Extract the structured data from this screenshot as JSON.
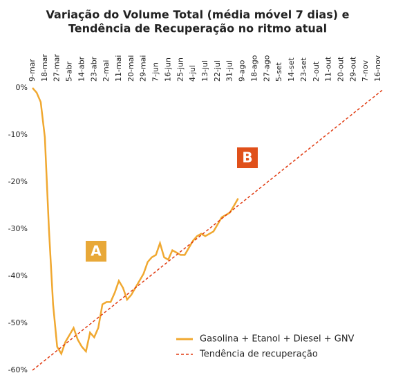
{
  "chart_data": {
    "type": "line",
    "title": [
      "Variação do Volume Total (média móvel 7 dias) e",
      "Tendência de Recuperação no ritmo atual"
    ],
    "categories": [
      "9-mar",
      null,
      null,
      "18-mar",
      null,
      null,
      "27-mar",
      null,
      null,
      "5-abr",
      null,
      null,
      "14-abr",
      null,
      null,
      "23-abr",
      null,
      null,
      "2-mai",
      null,
      null,
      "11-mai",
      null,
      null,
      "20-mai",
      null,
      null,
      "29-mai",
      null,
      null,
      "7-jun",
      null,
      null,
      "16-jun",
      null,
      null,
      "25-jun",
      null,
      null,
      "4-jul",
      null,
      null,
      "13-jul",
      null,
      null,
      "22-jul",
      null,
      null,
      "31-jul",
      null,
      null,
      "9-ago",
      null,
      null,
      "18-ago",
      null,
      null,
      "27-ago",
      null,
      null,
      "5-set",
      null,
      null,
      "14-set",
      null,
      null,
      "23-set",
      null,
      null,
      "2-out",
      null,
      null,
      "11-out",
      null,
      null,
      "20-out",
      null,
      null,
      "29-out",
      null,
      null,
      "7-nov",
      null,
      null,
      "16-nov",
      null
    ],
    "series": [
      {
        "name": "Gasolina + Etanol + Diesel + GNV",
        "color": "#f0a830",
        "line_style": "solid",
        "values": [
          0,
          -1,
          -3,
          -10.5,
          -30,
          -46,
          -55,
          -56.5,
          -54,
          -52.5,
          -51,
          -53.5,
          -55,
          -56,
          -52,
          -53,
          -51,
          -46,
          -45.5,
          -45.5,
          -43.5,
          -41,
          -42.5,
          -45,
          -44,
          -42.5,
          -41,
          -39.5,
          -37,
          -36,
          -35.5,
          -33,
          -36,
          -36.5,
          -34.5,
          -35,
          -35.5,
          -35.5,
          -34,
          -32.5,
          -31.5,
          -31,
          -31.5,
          -31,
          -30.5,
          -29,
          -27.5,
          -27,
          -26.5,
          -25,
          -23.5,
          null,
          null,
          null,
          null,
          null,
          null,
          null,
          null,
          null,
          null,
          null,
          null,
          null,
          null,
          null,
          null,
          null,
          null,
          null,
          null,
          null,
          null,
          null,
          null,
          null,
          null,
          null,
          null,
          null,
          null,
          null,
          null,
          null,
          null,
          null
        ]
      },
      {
        "name": "Tendência de recuperação",
        "color": "#e03a10",
        "line_style": "dashed",
        "values": [
          -60,
          -59.3,
          -58.6,
          -57.9,
          -57.2,
          -56.5,
          -55.8,
          -55.1,
          -54.4,
          -53.7,
          -53,
          -52.3,
          -51.6,
          -50.9,
          -50.2,
          -49.5,
          -48.8,
          -48.1,
          -47.4,
          -46.7,
          -46,
          -45.3,
          -44.6,
          -43.9,
          -43.2,
          -42.5,
          -41.8,
          -41.1,
          -40.4,
          -39.7,
          -39,
          -38.3,
          -37.6,
          -36.9,
          -36.2,
          -35.5,
          -34.8,
          -34.1,
          -33.4,
          -32.7,
          -32,
          -31.3,
          -30.6,
          -29.9,
          -29.2,
          -28.5,
          -27.8,
          -27.1,
          -26.4,
          -25.7,
          -25,
          -24.3,
          -23.6,
          -22.9,
          -22.2,
          -21.5,
          -20.8,
          -20.1,
          -19.4,
          -18.7,
          -18,
          -17.3,
          -16.6,
          -15.9,
          -15.2,
          -14.5,
          -13.8,
          -13.1,
          -12.4,
          -11.7,
          -11,
          -10.3,
          -9.6,
          -8.9,
          -8.2,
          -7.5,
          -6.8,
          -6.1,
          -5.4,
          -4.7,
          -4,
          -3.3,
          -2.6,
          -1.9,
          -1.2,
          -0.5
        ]
      }
    ],
    "ylim": [
      -60,
      0
    ],
    "yticks": [
      {
        "value": 0,
        "label": "0%"
      },
      {
        "value": -10,
        "label": "-10%"
      },
      {
        "value": -20,
        "label": "-20%"
      },
      {
        "value": -30,
        "label": "-30%"
      },
      {
        "value": -40,
        "label": "-40%"
      },
      {
        "value": -50,
        "label": "-50%"
      },
      {
        "value": -60,
        "label": "-60%"
      }
    ],
    "grid": false,
    "legend": "lower right",
    "annotations": [
      {
        "text": "A",
        "color": "#e8a838"
      },
      {
        "text": "B",
        "color": "#e0501a"
      }
    ]
  }
}
